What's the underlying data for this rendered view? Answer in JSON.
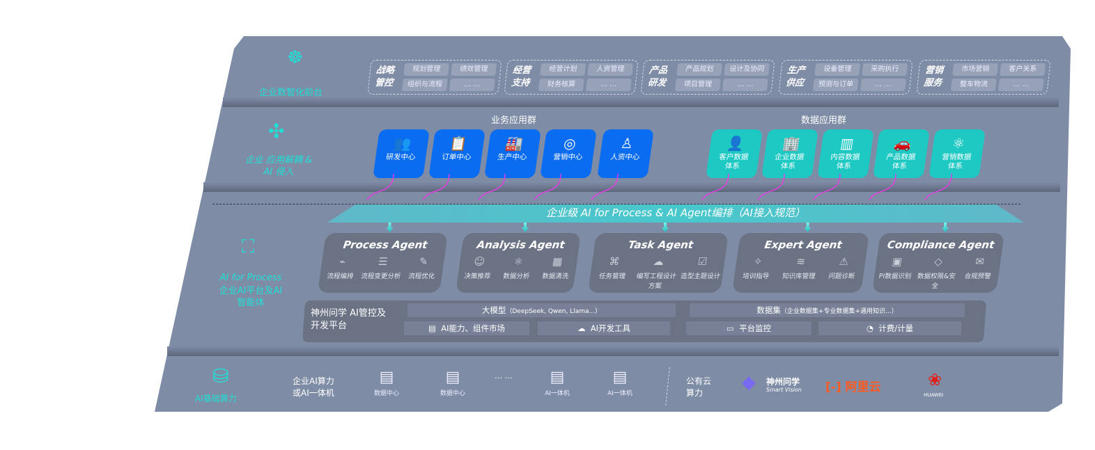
{
  "layer1": {
    "label": "企业数智化前台",
    "icon": "brain-icon",
    "groups": [
      {
        "title": "战略管控",
        "items": [
          "规划管理",
          "绩效管理",
          "组织与流程",
          "… …"
        ]
      },
      {
        "title": "经营支持",
        "items": [
          "经营计划",
          "人资管理",
          "财务核算",
          "… …"
        ]
      },
      {
        "title": "产品研发",
        "items": [
          "产品规划",
          "设计及协同",
          "项目管理",
          "… …"
        ]
      },
      {
        "title": "生产供应",
        "items": [
          "设备管理",
          "采购执行",
          "预测与订单",
          "… …"
        ]
      },
      {
        "title": "营销服务",
        "items": [
          "市场营销",
          "客户关系",
          "整车物流",
          "… …"
        ]
      }
    ]
  },
  "layer2": {
    "label": "企业 应用解耦 & AI 侵入",
    "icon": "molecule-icon",
    "business": {
      "title": "业务应用群",
      "apps": [
        "研发中心",
        "订单中心",
        "生产中心",
        "营销中心",
        "人资中心"
      ]
    },
    "data": {
      "title": "数据应用群",
      "apps": [
        "客户数据体系",
        "企业数据体系",
        "内容数据体系",
        "产品数据体系",
        "营销数据体系"
      ]
    }
  },
  "bus": {
    "title": "企业级 AI for Process & AI Agent编排（AI接入规范）"
  },
  "layer3": {
    "label_en": "AI for Process",
    "label_cn": "企业AI平台及AI智能体",
    "icon": "face-scan-icon",
    "agents": [
      {
        "name": "Process Agent",
        "items": [
          "流程编排",
          "流程变更分析",
          "流程优化"
        ]
      },
      {
        "name": "Analysis Agent",
        "items": [
          "决策推荐",
          "数据分析",
          "数据清洗"
        ]
      },
      {
        "name": "Task Agent",
        "items": [
          "任务管理",
          "编写工程设计方案",
          "造型主题设计"
        ]
      },
      {
        "name": "Expert Agent",
        "items": [
          "培训指导",
          "知识库管理",
          "问题诊断"
        ]
      },
      {
        "name": "Compliance Agent",
        "items": [
          "PI数据识别",
          "数据权限&安全",
          "合规预警"
        ]
      }
    ],
    "platform": {
      "title": "神州问学 AI管控及开发平台",
      "model": "大模型",
      "model_note": "（DeepSeek, Qwen, Llama...）",
      "dataset": "数据集",
      "dataset_note": "（企业数据集+专业数据集+通用知识...）",
      "market": "AI能力、组件市场",
      "devtools": "AI开发工具",
      "monitor": "平台监控",
      "billing": "计费/计量"
    }
  },
  "layer4": {
    "label": "AI基础算力",
    "icon": "database-icon",
    "local": "企业AI算力或AI一体机",
    "servers": [
      "数据中心",
      "数据中心",
      "AI一体机",
      "AI一体机"
    ],
    "ellipsis": "… …",
    "cloud": "公有云算力",
    "vendors": [
      "神州问学",
      "Smart Vision",
      "阿里云",
      "HUAWEI"
    ]
  },
  "colors": {
    "panel": "#7f8ca6",
    "teal": "#1fe0d6",
    "blue": "#0a6cf0",
    "cyan": "#1ec9c4",
    "magenta": "#e040e0"
  }
}
